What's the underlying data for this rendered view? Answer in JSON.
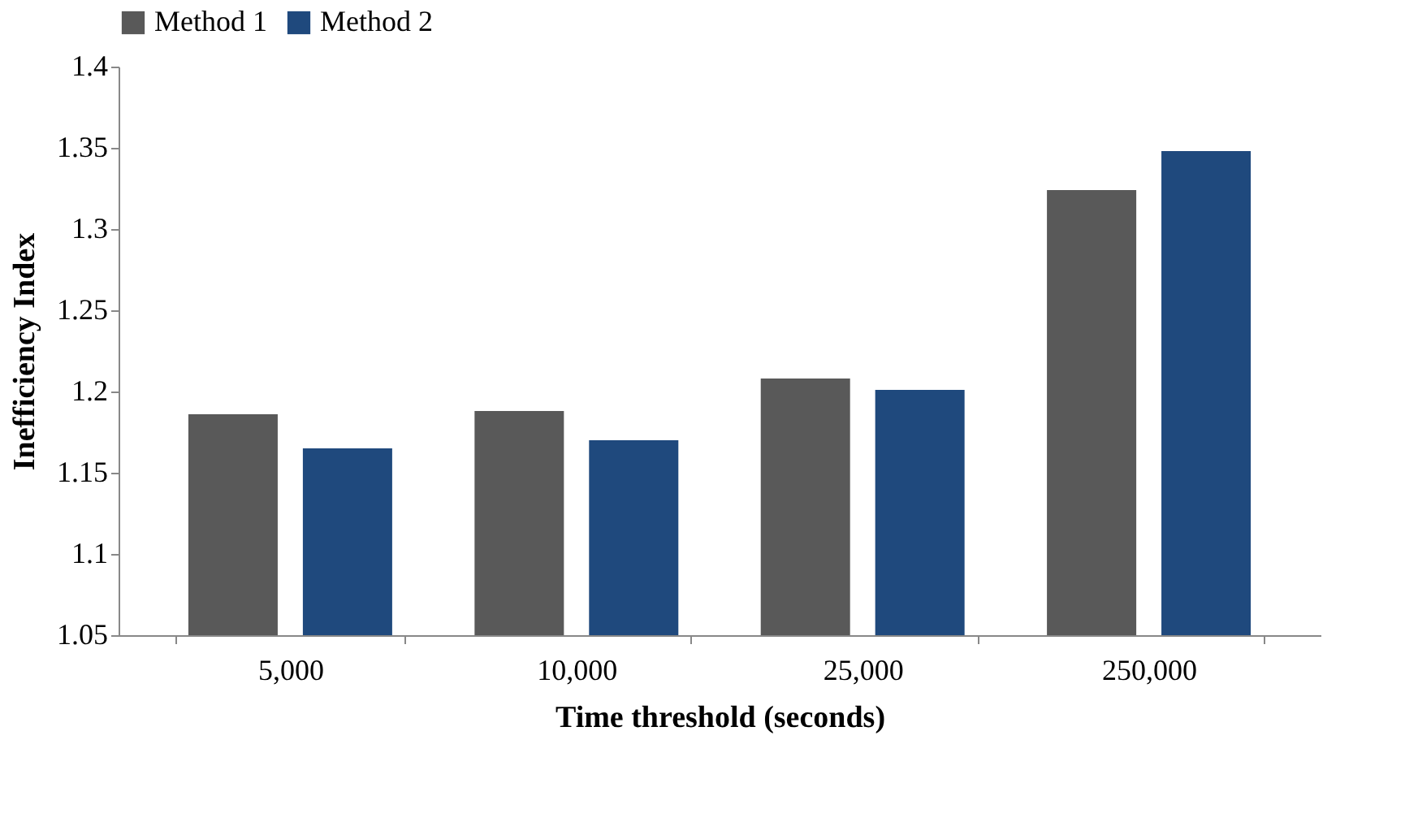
{
  "chart_data": {
    "type": "bar",
    "xlabel": "Time threshold (seconds)",
    "ylabel": "Inefficiency Index",
    "categories": [
      "5,000",
      "10,000",
      "25,000",
      "250,000"
    ],
    "series": [
      {
        "name": "Method 1",
        "color": "#595959",
        "values": [
          1.186,
          1.188,
          1.208,
          1.324
        ]
      },
      {
        "name": "Method 2",
        "color": "#1f497d",
        "values": [
          1.165,
          1.17,
          1.201,
          1.348
        ]
      }
    ],
    "ylim": [
      1.05,
      1.4
    ],
    "yticks": [
      1.05,
      1.1,
      1.15,
      1.2,
      1.25,
      1.3,
      1.35,
      1.4
    ],
    "grid": false,
    "legend": "top"
  }
}
